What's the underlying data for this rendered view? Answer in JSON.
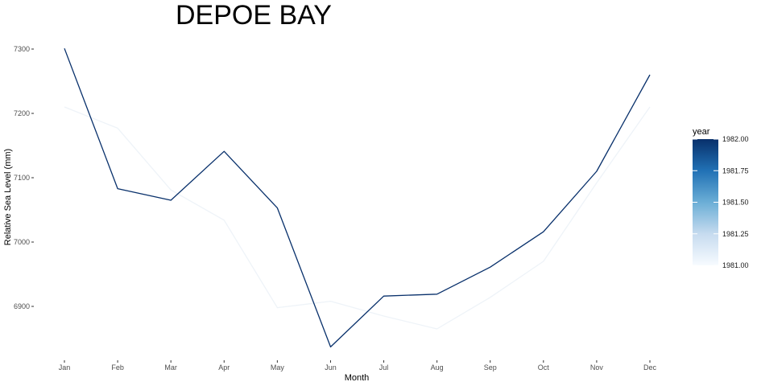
{
  "chart_data": {
    "type": "line",
    "title": "DEPOE BAY",
    "xlabel": "Month",
    "ylabel": "Relative Sea Level (mm)",
    "categories": [
      "Jan",
      "Feb",
      "Mar",
      "Apr",
      "May",
      "Jun",
      "Jul",
      "Aug",
      "Sep",
      "Oct",
      "Nov",
      "Dec"
    ],
    "ylim": [
      6835,
      7305
    ],
    "yticks": [
      6900,
      7000,
      7100,
      7200,
      7300
    ],
    "grid": false,
    "series": [
      {
        "name": "1981",
        "color": "#f7fbff",
        "values": [
          7210,
          7177,
          7081,
          7034,
          6898,
          6908,
          6885,
          6865,
          6914,
          6970,
          7092,
          7210
        ]
      },
      {
        "name": "1982",
        "color": "#08306b",
        "values": [
          7301,
          7083,
          7065,
          7141,
          7053,
          6837,
          6916,
          6919,
          6961,
          7016,
          7110,
          7260
        ]
      }
    ],
    "legend": {
      "title": "year",
      "position": "right",
      "type": "colorbar",
      "colors": [
        "#f7fbff",
        "#c6dbef",
        "#6baed6",
        "#2171b5",
        "#08306b"
      ],
      "labels": [
        "1982.00",
        "1981.75",
        "1981.50",
        "1981.25",
        "1981.00"
      ]
    }
  }
}
